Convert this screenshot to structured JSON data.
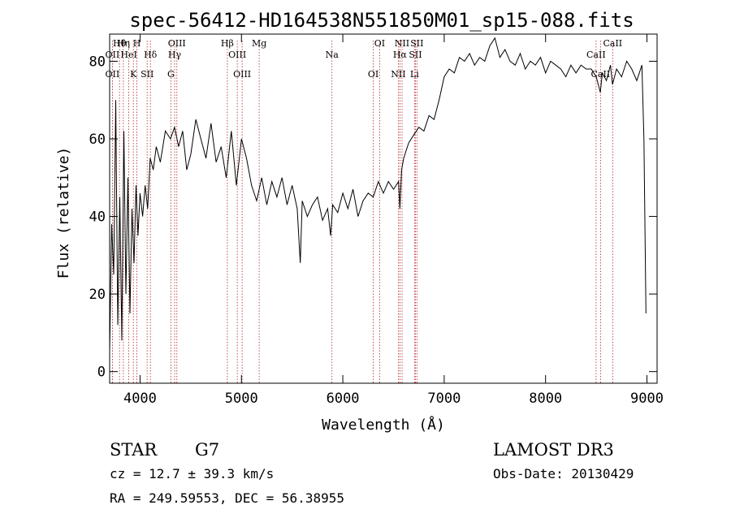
{
  "chart_data": {
    "type": "line",
    "title": "spec-56412-HD164538N551850M01_sp15-088.fits",
    "xlabel": "Wavelength (Å)",
    "ylabel": "Flux (relative)",
    "xlim": [
      3700,
      9100
    ],
    "ylim": [
      -3,
      87
    ],
    "x_ticks": [
      4000,
      5000,
      6000,
      7000,
      8000,
      9000
    ],
    "y_ticks": [
      0,
      20,
      40,
      60,
      80
    ],
    "series": [
      {
        "name": "flux",
        "x": [
          3700,
          3720,
          3740,
          3760,
          3780,
          3800,
          3820,
          3840,
          3860,
          3880,
          3900,
          3920,
          3940,
          3960,
          3980,
          4000,
          4025,
          4050,
          4075,
          4100,
          4130,
          4160,
          4200,
          4250,
          4300,
          4340,
          4380,
          4420,
          4460,
          4500,
          4550,
          4600,
          4650,
          4700,
          4750,
          4800,
          4850,
          4900,
          4950,
          5000,
          5050,
          5100,
          5150,
          5200,
          5250,
          5300,
          5350,
          5400,
          5450,
          5500,
          5550,
          5580,
          5600,
          5650,
          5700,
          5750,
          5800,
          5850,
          5880,
          5900,
          5950,
          6000,
          6050,
          6100,
          6150,
          6200,
          6250,
          6300,
          6350,
          6400,
          6450,
          6500,
          6550,
          6563,
          6580,
          6600,
          6650,
          6700,
          6750,
          6800,
          6850,
          6900,
          6950,
          7000,
          7050,
          7100,
          7150,
          7200,
          7250,
          7300,
          7350,
          7400,
          7450,
          7500,
          7550,
          7600,
          7650,
          7700,
          7750,
          7800,
          7850,
          7900,
          7950,
          8000,
          8050,
          8100,
          8150,
          8200,
          8250,
          8300,
          8350,
          8400,
          8450,
          8500,
          8540,
          8560,
          8600,
          8640,
          8660,
          8700,
          8750,
          8800,
          8850,
          8900,
          8950,
          8970,
          8990
        ],
        "values": [
          5,
          38,
          25,
          70,
          12,
          45,
          8,
          62,
          20,
          50,
          15,
          42,
          28,
          48,
          35,
          46,
          40,
          48,
          42,
          55,
          52,
          58,
          54,
          62,
          60,
          63,
          58,
          62,
          52,
          56,
          65,
          60,
          55,
          64,
          54,
          58,
          50,
          62,
          48,
          60,
          55,
          48,
          44,
          50,
          43,
          49,
          45,
          50,
          43,
          48,
          42,
          28,
          44,
          40,
          43,
          45,
          39,
          42,
          35,
          43,
          41,
          46,
          42,
          47,
          40,
          44,
          46,
          45,
          49,
          46,
          49,
          47,
          49,
          42,
          52,
          55,
          59,
          61,
          63,
          62,
          66,
          65,
          70,
          76,
          78,
          77,
          81,
          80,
          82,
          79,
          81,
          80,
          84,
          86,
          81,
          83,
          80,
          79,
          82,
          78,
          80,
          79,
          81,
          77,
          80,
          79,
          78,
          76,
          79,
          77,
          79,
          78,
          78,
          76,
          72,
          77,
          75,
          79,
          74,
          78,
          76,
          80,
          78,
          75,
          79,
          60,
          15
        ]
      }
    ],
    "lines": [
      {
        "name": "Hθ",
        "x": 3797
      },
      {
        "name": "OII",
        "x": 3727
      },
      {
        "name": "OII",
        "x": 3727
      },
      {
        "name": "Hη",
        "x": 3835
      },
      {
        "name": "HeI",
        "x": 3889
      },
      {
        "name": "K",
        "x": 3934
      },
      {
        "name": "H",
        "x": 3969
      },
      {
        "name": "Hδ",
        "x": 4102
      },
      {
        "name": "SII",
        "x": 4070
      },
      {
        "name": "OIII",
        "x": 4363
      },
      {
        "name": "Hγ",
        "x": 4341
      },
      {
        "name": "G",
        "x": 4304
      },
      {
        "name": "Hβ",
        "x": 4861
      },
      {
        "name": "OIII",
        "x": 4959
      },
      {
        "name": "OIII",
        "x": 5007
      },
      {
        "name": "Mg",
        "x": 5175
      },
      {
        "name": "Na",
        "x": 5893
      },
      {
        "name": "OI",
        "x": 6300
      },
      {
        "name": "OI",
        "x": 6363
      },
      {
        "name": "Hα",
        "x": 6563
      },
      {
        "name": "NII",
        "x": 6548
      },
      {
        "name": "NII",
        "x": 6584
      },
      {
        "name": "SII",
        "x": 6716
      },
      {
        "name": "Li",
        "x": 6707
      },
      {
        "name": "SII",
        "x": 6731
      },
      {
        "name": "CaII",
        "x": 8498
      },
      {
        "name": "CaII",
        "x": 8542
      },
      {
        "name": "CaII",
        "x": 8662
      }
    ]
  },
  "info": {
    "object_class": "STAR",
    "subclass": "G7",
    "survey": "LAMOST DR3",
    "redshift": "cz = 12.7 ± 39.3 km/s",
    "obs_date": "Obs-Date: 20130429",
    "coords": "RA = 249.59553, DEC =  56.38955"
  }
}
